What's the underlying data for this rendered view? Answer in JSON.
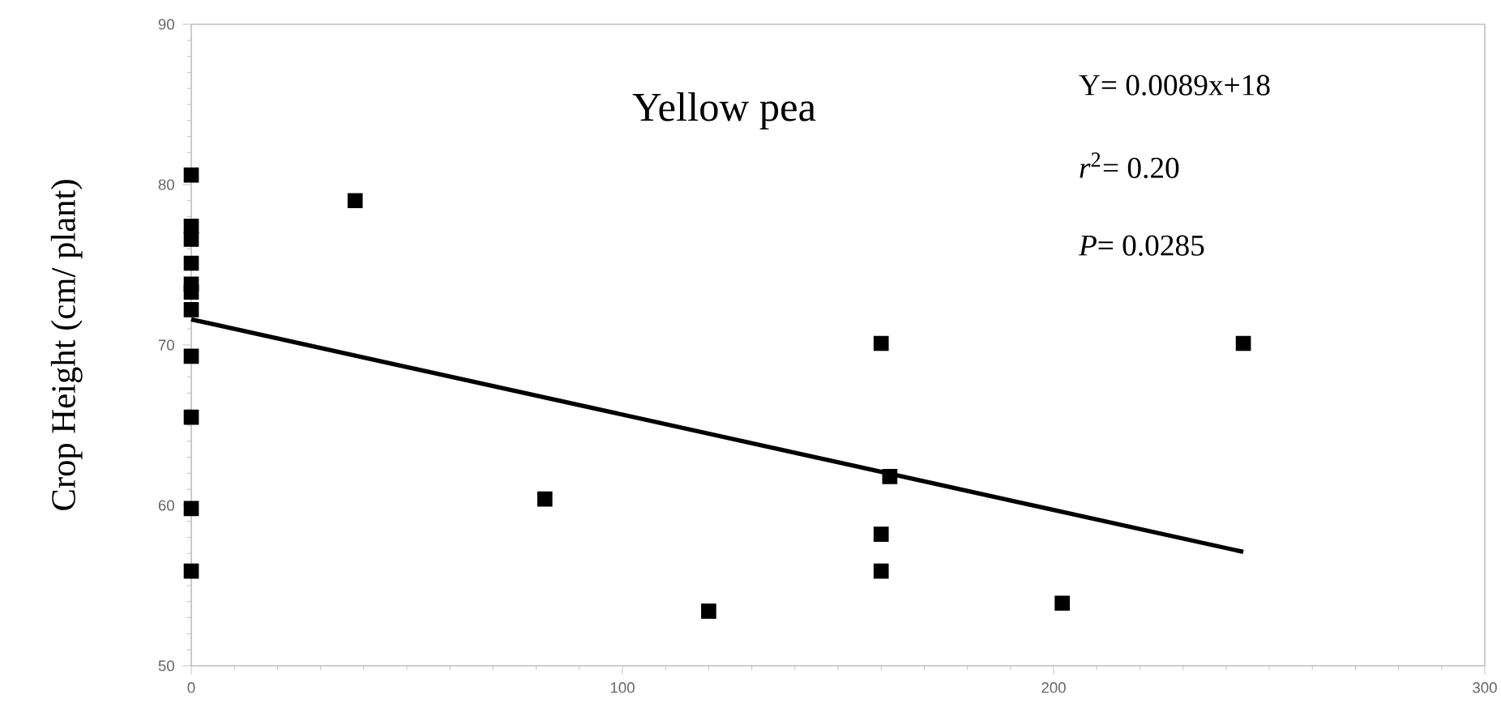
{
  "chart_data": {
    "type": "scatter",
    "title": "Yellow pea",
    "ylabel": "Crop Height (cm/ plant)",
    "annotations": [
      "Y= 0.0089x+18",
      "*r*$^{2}$= 0.20",
      "*P*= 0.0285"
    ],
    "xlim": [
      0,
      300
    ],
    "xticks": [
      0,
      100,
      200,
      300
    ],
    "ylim": [
      50,
      90
    ],
    "yticks": [
      50,
      60,
      70,
      80,
      90
    ],
    "series": [
      {
        "marker": "square",
        "color": "#000000",
        "x": [
          0,
          0,
          0,
          0,
          0,
          0,
          0,
          0,
          0,
          0,
          0,
          38,
          82,
          120,
          160,
          160,
          160,
          162,
          202,
          244
        ],
        "values": [
          80.6,
          77.4,
          76.6,
          75.1,
          73.8,
          73.3,
          72.2,
          69.3,
          65.5,
          59.8,
          55.9,
          79.0,
          60.4,
          53.4,
          70.1,
          58.2,
          55.9,
          61.8,
          53.9,
          70.1
        ]
      },
      {
        "type": "line",
        "marker": "none",
        "line_style": "solid",
        "color": "#000000",
        "x": [
          0,
          244
        ],
        "values": [
          71.6,
          57.1
        ]
      }
    ]
  }
}
